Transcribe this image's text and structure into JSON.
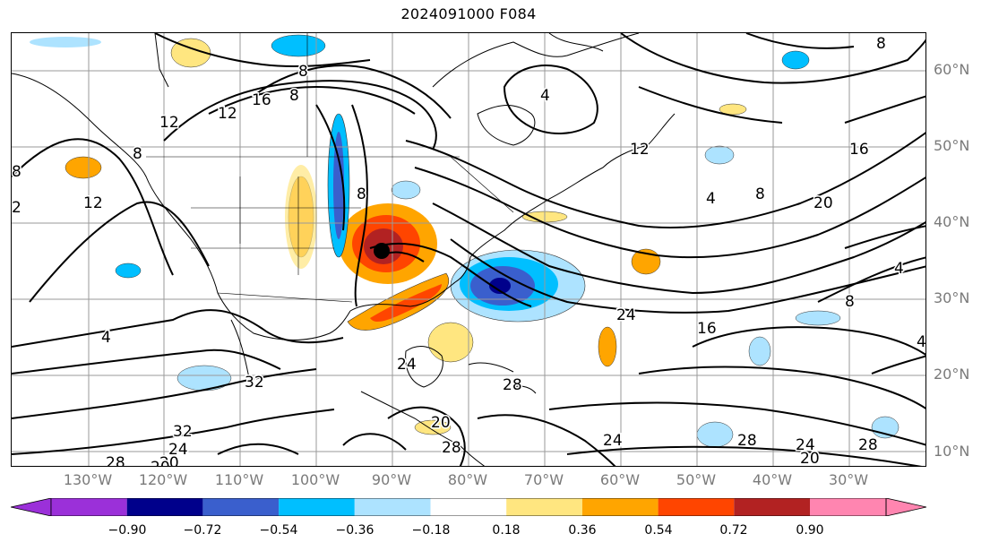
{
  "title": "2024091000 F084",
  "lat_labels": [
    "60°N",
    "50°N",
    "40°N",
    "30°N",
    "20°N",
    "10°N"
  ],
  "lon_labels": [
    "130°W",
    "120°W",
    "110°W",
    "100°W",
    "90°W",
    "80°W",
    "70°W",
    "60°W",
    "50°W",
    "40°W",
    "30°W"
  ],
  "colorbar": {
    "ticks": [
      "−0.90",
      "−0.72",
      "−0.54",
      "−0.36",
      "−0.18",
      "0.18",
      "0.36",
      "0.54",
      "0.72",
      "0.90"
    ],
    "colors": [
      "#9b30d9",
      "#00008b",
      "#3a5fcd",
      "#00bfff",
      "#ade3ff",
      "#ffffff",
      "#ffe680",
      "#ffa500",
      "#ff4500",
      "#b22222",
      "#ff85b0"
    ]
  },
  "contour_labels": [
    "8",
    "12",
    "16",
    "12",
    "8",
    "12",
    "4",
    "8",
    "4",
    "8",
    "12",
    "16",
    "20",
    "4",
    "4",
    "8",
    "16",
    "24",
    "24",
    "20",
    "28",
    "28",
    "24",
    "20",
    "28",
    "24",
    "20",
    "32",
    "32",
    "24",
    "28",
    "20",
    "8",
    "4",
    "2",
    "8",
    "8",
    "28"
  ],
  "shading_legend": {
    "positive": "warm colors",
    "negative": "cool colors"
  }
}
